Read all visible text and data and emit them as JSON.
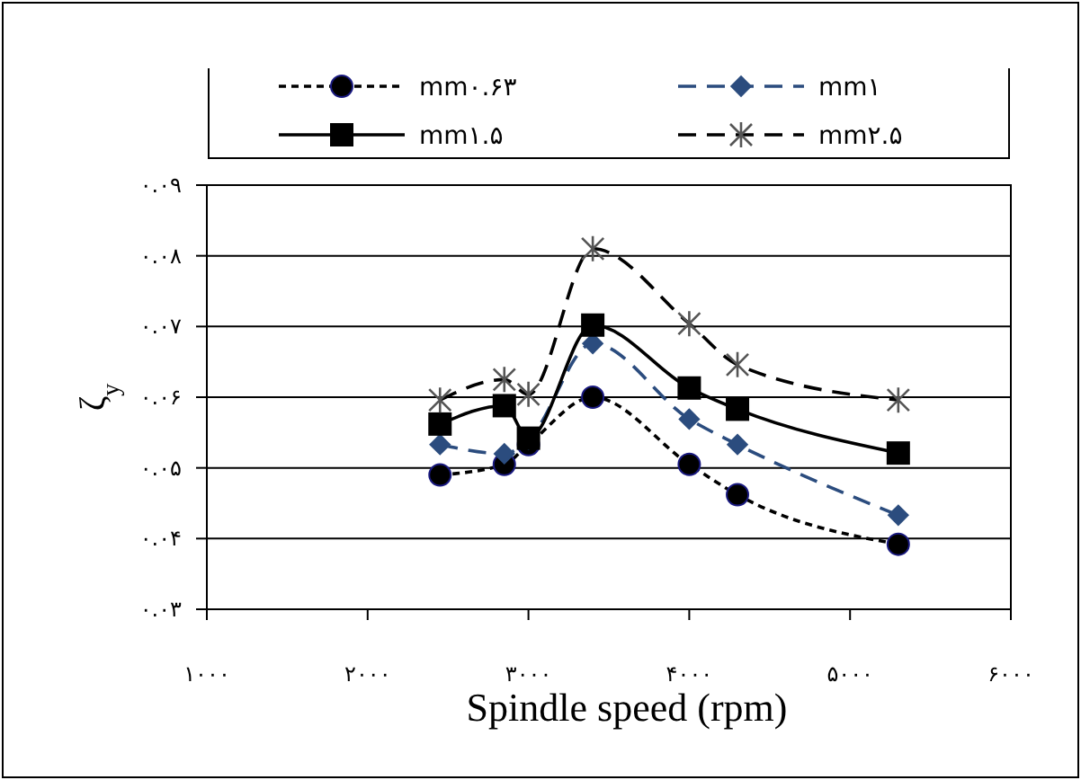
{
  "chart_data": {
    "type": "line",
    "xlabel": "Spindle speed (rpm)",
    "ylabel": "ζ$_{y}$",
    "xlim": [
      1000,
      6000
    ],
    "xticks": [
      {
        "value": 1000,
        "label": "۱۰۰۰"
      },
      {
        "value": 2000,
        "label": "۲۰۰۰"
      },
      {
        "value": 3000,
        "label": "۳۰۰۰"
      },
      {
        "value": 4000,
        "label": "۴۰۰۰"
      },
      {
        "value": 5000,
        "label": "۵۰۰۰"
      },
      {
        "value": 6000,
        "label": "۶۰۰۰"
      }
    ],
    "ylim": [
      0.03,
      0.09
    ],
    "yticks": [
      {
        "value": 0.03,
        "label": "۰.۰۳"
      },
      {
        "value": 0.04,
        "label": "۰.۰۴"
      },
      {
        "value": 0.05,
        "label": "۰.۰۵"
      },
      {
        "value": 0.06,
        "label": "۰.۰۶"
      },
      {
        "value": 0.07,
        "label": "۰.۰۷"
      },
      {
        "value": 0.08,
        "label": "۰.۰۸"
      },
      {
        "value": 0.09,
        "label": "۰.۰۹"
      }
    ],
    "x": [
      2450,
      2850,
      3000,
      3400,
      4000,
      4300,
      5300
    ],
    "grid": "y",
    "legend": "top",
    "series": [
      {
        "name": "mm۰.۶۳",
        "color": "#000000",
        "marker": "circle",
        "line_style": "dotted",
        "values": [
          0.049,
          0.0505,
          0.0533,
          0.06,
          0.0505,
          0.0462,
          0.0392
        ]
      },
      {
        "name": "mm۱",
        "color": "#2b4c7e",
        "marker": "diamond",
        "line_style": "dashed",
        "values": [
          0.0533,
          0.052,
          0.054,
          0.0676,
          0.0569,
          0.0533,
          0.0433
        ]
      },
      {
        "name": "mm۱.۵",
        "color": "#000000",
        "marker": "square",
        "line_style": "solid",
        "values": [
          0.0562,
          0.0588,
          0.0542,
          0.0702,
          0.0613,
          0.0583,
          0.0521
        ]
      },
      {
        "name": "mm۲.۵",
        "color": "#000000",
        "marker": "cross",
        "line_style": "dashed",
        "values": [
          0.0596,
          0.0625,
          0.0604,
          0.081,
          0.0704,
          0.0646,
          0.0596
        ]
      }
    ]
  }
}
